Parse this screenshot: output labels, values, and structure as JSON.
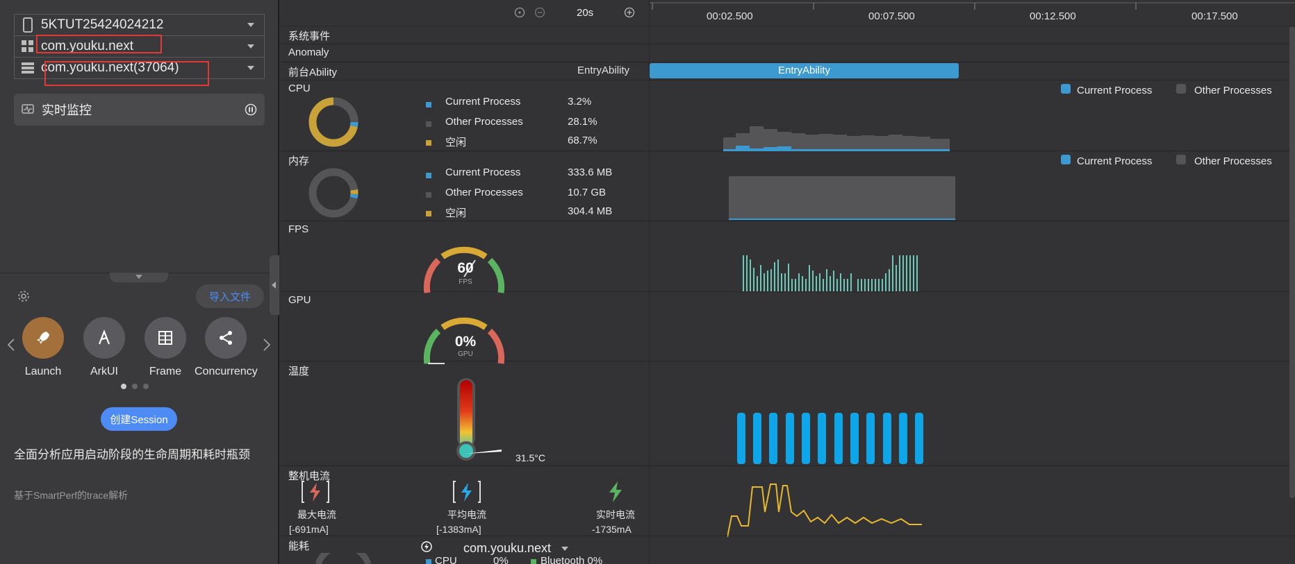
{
  "device": {
    "id": "5KTUT25424024212"
  },
  "app": {
    "package": "com.youku.next",
    "process": "com.youku.next(37064)"
  },
  "monitor": {
    "label": "实时监控"
  },
  "import_label": "导入文件",
  "tools": [
    {
      "label": "Launch",
      "icon": "rocket-icon"
    },
    {
      "label": "ArkUI",
      "icon": "arkui-icon"
    },
    {
      "label": "Frame",
      "icon": "frame-icon"
    },
    {
      "label": "Concurrency",
      "icon": "share-nodes-icon"
    }
  ],
  "create_label": "创建Session",
  "description": "全面分析应用启动阶段的生命周期和耗时瓶颈",
  "subdescription": "基于SmartPerf的trace解析",
  "timeline": {
    "window": "20s",
    "ticks": [
      "00:02.500",
      "00:07.500",
      "00:12.500",
      "00:17.500"
    ]
  },
  "rows": {
    "system_events": "系统事件",
    "anomaly": "Anomaly",
    "foreground": {
      "label": "前台Ability",
      "value": "EntryAbility",
      "bar": "EntryAbility"
    },
    "cpu": {
      "label": "CPU",
      "items": [
        {
          "name": "Current Process",
          "value": "3.2%",
          "color": "#3d9ad1"
        },
        {
          "name": "Other Processes",
          "value": "28.1%",
          "color": "#555558"
        },
        {
          "name": "空闲",
          "value": "68.7%",
          "color": "#c9a23a"
        }
      ],
      "legend": [
        "Current Process",
        "Other Processes"
      ]
    },
    "memory": {
      "label": "内存",
      "items": [
        {
          "name": "Current Process",
          "value": "333.6 MB",
          "color": "#3d9ad1"
        },
        {
          "name": "Other Processes",
          "value": "10.7 GB",
          "color": "#555558"
        },
        {
          "name": "空闲",
          "value": "304.4 MB",
          "color": "#c9a23a"
        }
      ],
      "legend": [
        "Current Process",
        "Other Processes"
      ]
    },
    "fps": {
      "label": "FPS",
      "value": "60",
      "unit": "FPS"
    },
    "gpu": {
      "label": "GPU",
      "value": "0%",
      "unit": "GPU"
    },
    "temperature": {
      "label": "温度",
      "value": "31.5°C"
    },
    "current": {
      "label": "整机电流",
      "max": {
        "label": "最大电流",
        "value": "[-691mA]"
      },
      "avg": {
        "label": "平均电流",
        "value": "[-1383mA]"
      },
      "realtime": {
        "label": "实时电流",
        "value": "-1735mA"
      }
    },
    "energy": {
      "label": "能耗",
      "app": "com.youku.next",
      "cpu": "CPU",
      "cpu_val": "0%",
      "bt": "Bluetooth 0%"
    }
  },
  "colors": {
    "accent": "#4f8bf5",
    "cpu_current": "#3d9ad1",
    "idle": "#c9a23a",
    "temp_bar": "#0ea5e9",
    "current_line": "#e8b830",
    "fps_bar": "#6fc9b8"
  }
}
